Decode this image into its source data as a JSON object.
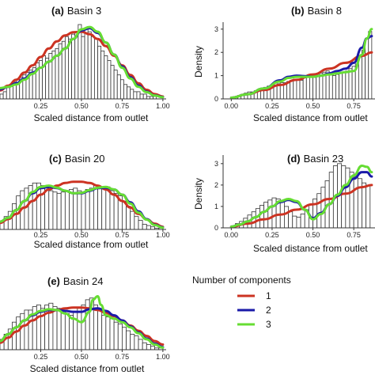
{
  "legend": {
    "title": "Number of components",
    "items": [
      {
        "label": "1",
        "color": "#cc3322"
      },
      {
        "label": "2",
        "color": "#1a1aa8"
      },
      {
        "label": "3",
        "color": "#66dd33"
      }
    ]
  },
  "chart_data": [
    {
      "type": "area",
      "panel": "(a)",
      "title": "Basin 3",
      "xlabel": "Scaled distance from outlet",
      "ylabel": "",
      "xticks": [
        "0.25",
        "0.50",
        "0.75",
        "1.00"
      ],
      "yticks": [],
      "xlim": [
        0.0,
        1.02
      ],
      "ylim": [
        0,
        3.2
      ],
      "histogram": {
        "bin_width": 0.02,
        "start": 0.0,
        "values": [
          0.2,
          0.3,
          0.5,
          0.6,
          0.7,
          0.8,
          0.9,
          1.0,
          1.1,
          1.2,
          1.3,
          1.5,
          1.6,
          1.8,
          1.7,
          1.9,
          2.0,
          2.1,
          2.3,
          2.4,
          2.6,
          2.5,
          2.7,
          2.8,
          3.1,
          2.6,
          2.9,
          2.8,
          2.6,
          2.5,
          2.2,
          2.0,
          1.8,
          1.6,
          1.4,
          1.2,
          1.0,
          0.8,
          0.6,
          0.5,
          0.4,
          0.3,
          0.3,
          0.2,
          0.2,
          0.1,
          0.1,
          0.1,
          0.0,
          0.0
        ]
      },
      "series": [
        {
          "name": "1",
          "x": [
            0,
            0.05,
            0.1,
            0.15,
            0.2,
            0.25,
            0.3,
            0.35,
            0.4,
            0.45,
            0.5,
            0.55,
            0.6,
            0.65,
            0.7,
            0.75,
            0.8,
            0.85,
            0.9,
            0.95,
            1.0
          ],
          "y": [
            0.35,
            0.55,
            0.8,
            1.1,
            1.4,
            1.75,
            2.1,
            2.4,
            2.65,
            2.78,
            2.8,
            2.7,
            2.5,
            2.2,
            1.8,
            1.4,
            1.0,
            0.65,
            0.38,
            0.2,
            0.1
          ]
        },
        {
          "name": "2",
          "x": [
            0,
            0.05,
            0.1,
            0.15,
            0.2,
            0.25,
            0.3,
            0.35,
            0.4,
            0.45,
            0.5,
            0.55,
            0.6,
            0.65,
            0.7,
            0.75,
            0.8,
            0.85,
            0.9,
            0.95,
            1.0
          ],
          "y": [
            0.4,
            0.5,
            0.65,
            0.85,
            1.1,
            1.3,
            1.55,
            1.8,
            2.1,
            2.5,
            2.85,
            2.95,
            2.75,
            2.35,
            1.85,
            1.35,
            0.9,
            0.55,
            0.3,
            0.15,
            0.08
          ]
        },
        {
          "name": "3",
          "x": [
            0,
            0.05,
            0.1,
            0.15,
            0.2,
            0.25,
            0.3,
            0.35,
            0.4,
            0.45,
            0.5,
            0.55,
            0.6,
            0.65,
            0.7,
            0.75,
            0.8,
            0.85,
            0.9,
            0.95,
            1.0
          ],
          "y": [
            0.45,
            0.5,
            0.6,
            0.8,
            1.05,
            1.3,
            1.55,
            1.8,
            2.1,
            2.5,
            2.9,
            3.0,
            2.8,
            2.35,
            1.85,
            1.3,
            0.85,
            0.5,
            0.28,
            0.14,
            0.07
          ]
        }
      ]
    },
    {
      "type": "area",
      "panel": "(b)",
      "title": "Basin 8",
      "xlabel": "Scaled distance from outlet",
      "ylabel": "Density",
      "xticks": [
        "0.00",
        "0.25",
        "0.50",
        "0.75"
      ],
      "yticks": [
        "0",
        "1",
        "2",
        "3"
      ],
      "xlim": [
        -0.05,
        0.88
      ],
      "ylim": [
        0,
        3.3
      ],
      "histogram": {
        "bin_width": 0.02,
        "start": 0.0,
        "values": [
          0.05,
          0.1,
          0.15,
          0.2,
          0.25,
          0.3,
          0.3,
          0.35,
          0.4,
          0.45,
          0.5,
          0.55,
          0.55,
          0.6,
          0.65,
          0.7,
          0.7,
          0.75,
          0.8,
          0.85,
          0.85,
          0.8,
          0.9,
          0.95,
          1.0,
          1.05,
          0.95,
          1.1,
          1.15,
          1.2,
          1.1,
          1.0,
          1.05,
          1.1,
          1.15,
          1.2,
          1.3,
          1.4,
          1.5,
          1.8,
          2.1,
          2.6,
          2.9
        ]
      },
      "series": [
        {
          "name": "1",
          "x": [
            0,
            0.1,
            0.2,
            0.3,
            0.4,
            0.5,
            0.6,
            0.7,
            0.8,
            0.86
          ],
          "y": [
            0.05,
            0.2,
            0.38,
            0.6,
            0.82,
            1.05,
            1.3,
            1.55,
            1.85,
            2.0
          ]
        },
        {
          "name": "2",
          "x": [
            0,
            0.1,
            0.2,
            0.3,
            0.35,
            0.4,
            0.45,
            0.5,
            0.55,
            0.6,
            0.65,
            0.7,
            0.75,
            0.8,
            0.83,
            0.86
          ],
          "y": [
            0.05,
            0.2,
            0.45,
            0.8,
            0.95,
            1.0,
            0.98,
            0.95,
            1.0,
            1.1,
            1.2,
            1.3,
            1.55,
            2.2,
            2.6,
            2.7
          ]
        },
        {
          "name": "3",
          "x": [
            0,
            0.1,
            0.2,
            0.3,
            0.35,
            0.4,
            0.45,
            0.5,
            0.55,
            0.6,
            0.65,
            0.7,
            0.75,
            0.8,
            0.83,
            0.86
          ],
          "y": [
            0.05,
            0.2,
            0.45,
            0.75,
            0.9,
            0.95,
            0.95,
            0.95,
            1.0,
            1.05,
            1.1,
            1.15,
            1.2,
            1.9,
            2.6,
            3.0
          ]
        }
      ]
    },
    {
      "type": "area",
      "panel": "(c)",
      "title": "Basin 20",
      "xlabel": "Scaled distance from outlet",
      "ylabel": "",
      "xticks": [
        "0.25",
        "0.50",
        "0.75",
        "1.00"
      ],
      "yticks": [],
      "xlim": [
        0.0,
        1.02
      ],
      "ylim": [
        0,
        2.3
      ],
      "histogram": {
        "bin_width": 0.025,
        "start": 0.0,
        "values": [
          0.3,
          0.5,
          0.7,
          1.0,
          1.3,
          1.5,
          1.6,
          1.7,
          1.8,
          1.8,
          1.7,
          1.6,
          1.5,
          1.45,
          1.4,
          1.45,
          1.5,
          1.55,
          1.6,
          1.5,
          1.45,
          1.55,
          1.6,
          1.7,
          1.65,
          1.6,
          1.65,
          1.5,
          1.4,
          1.3,
          1.1,
          0.9,
          0.7,
          0.5,
          0.35,
          0.2,
          0.15,
          0.1,
          0.05,
          0.05
        ]
      },
      "series": [
        {
          "name": "1",
          "x": [
            0,
            0.05,
            0.1,
            0.15,
            0.2,
            0.25,
            0.3,
            0.35,
            0.4,
            0.45,
            0.5,
            0.55,
            0.6,
            0.65,
            0.7,
            0.75,
            0.8,
            0.85,
            0.9,
            0.95,
            1.0
          ],
          "y": [
            0.25,
            0.4,
            0.6,
            0.85,
            1.1,
            1.35,
            1.55,
            1.7,
            1.8,
            1.85,
            1.85,
            1.8,
            1.7,
            1.55,
            1.35,
            1.1,
            0.85,
            0.6,
            0.4,
            0.22,
            0.1
          ]
        },
        {
          "name": "2",
          "x": [
            0,
            0.05,
            0.1,
            0.15,
            0.2,
            0.25,
            0.3,
            0.35,
            0.4,
            0.45,
            0.5,
            0.55,
            0.6,
            0.65,
            0.7,
            0.75,
            0.8,
            0.85,
            0.9,
            0.95,
            1.0
          ],
          "y": [
            0.3,
            0.45,
            0.75,
            1.1,
            1.4,
            1.6,
            1.65,
            1.6,
            1.5,
            1.4,
            1.4,
            1.5,
            1.6,
            1.62,
            1.55,
            1.35,
            1.05,
            0.7,
            0.4,
            0.18,
            0.08
          ]
        },
        {
          "name": "3",
          "x": [
            0,
            0.05,
            0.1,
            0.15,
            0.2,
            0.25,
            0.3,
            0.35,
            0.4,
            0.45,
            0.5,
            0.55,
            0.6,
            0.65,
            0.7,
            0.75,
            0.8,
            0.85,
            0.9,
            0.95,
            1.0
          ],
          "y": [
            0.3,
            0.45,
            0.75,
            1.1,
            1.45,
            1.65,
            1.7,
            1.62,
            1.5,
            1.4,
            1.42,
            1.52,
            1.62,
            1.65,
            1.55,
            1.35,
            1.0,
            0.65,
            0.38,
            0.17,
            0.07
          ]
        }
      ]
    },
    {
      "type": "area",
      "panel": "(d)",
      "title": "Basin 23",
      "xlabel": "Scaled distance from outlet",
      "ylabel": "Density",
      "xticks": [
        "0.00",
        "0.25",
        "0.50",
        "0.75"
      ],
      "yticks": [
        "0",
        "1",
        "2",
        "3"
      ],
      "xlim": [
        -0.05,
        0.88
      ],
      "ylim": [
        0,
        3.4
      ],
      "histogram": {
        "bin_width": 0.025,
        "start": 0.0,
        "values": [
          0.1,
          0.2,
          0.3,
          0.45,
          0.6,
          0.75,
          0.9,
          1.05,
          1.2,
          1.3,
          1.4,
          1.35,
          1.2,
          1.0,
          0.75,
          0.55,
          0.5,
          0.65,
          0.85,
          1.1,
          1.35,
          1.6,
          1.9,
          2.2,
          2.6,
          2.9,
          3.0,
          2.9,
          2.8,
          2.6,
          2.4,
          2.3,
          2.1,
          2.0
        ]
      },
      "series": [
        {
          "name": "1",
          "x": [
            0,
            0.1,
            0.2,
            0.3,
            0.4,
            0.5,
            0.6,
            0.7,
            0.8,
            0.86
          ],
          "y": [
            0.05,
            0.2,
            0.4,
            0.62,
            0.85,
            1.1,
            1.35,
            1.6,
            1.9,
            2.0
          ]
        },
        {
          "name": "2",
          "x": [
            0,
            0.05,
            0.1,
            0.15,
            0.2,
            0.25,
            0.3,
            0.35,
            0.4,
            0.45,
            0.5,
            0.55,
            0.6,
            0.65,
            0.7,
            0.75,
            0.8,
            0.83,
            0.86
          ],
          "y": [
            0.05,
            0.15,
            0.3,
            0.5,
            0.75,
            1.0,
            1.2,
            1.3,
            1.2,
            0.85,
            0.45,
            0.7,
            1.1,
            1.5,
            1.9,
            2.3,
            2.6,
            2.6,
            2.4
          ]
        },
        {
          "name": "3",
          "x": [
            0,
            0.05,
            0.1,
            0.15,
            0.2,
            0.25,
            0.3,
            0.35,
            0.4,
            0.45,
            0.5,
            0.55,
            0.6,
            0.65,
            0.7,
            0.75,
            0.8,
            0.83,
            0.86
          ],
          "y": [
            0.05,
            0.15,
            0.3,
            0.5,
            0.75,
            1.0,
            1.25,
            1.35,
            1.25,
            0.85,
            0.4,
            0.65,
            1.1,
            1.55,
            2.0,
            2.45,
            2.9,
            2.85,
            2.6
          ]
        }
      ]
    },
    {
      "type": "area",
      "panel": "(e)",
      "title": "Basin 24",
      "xlabel": "Scaled distance from outlet",
      "ylabel": "",
      "xticks": [
        "0.25",
        "0.50",
        "0.75",
        "1.00"
      ],
      "yticks": [],
      "xlim": [
        0.0,
        1.02
      ],
      "ylim": [
        0,
        3.4
      ],
      "histogram": {
        "bin_width": 0.025,
        "start": 0.0,
        "values": [
          0.6,
          0.9,
          1.2,
          1.6,
          1.9,
          2.1,
          2.3,
          2.3,
          2.5,
          2.6,
          2.4,
          2.6,
          2.7,
          2.5,
          2.4,
          2.3,
          2.1,
          2.0,
          2.2,
          2.4,
          2.6,
          2.9,
          3.0,
          2.6,
          2.3,
          2.0,
          1.9,
          1.8,
          1.6,
          1.5,
          1.3,
          1.1,
          0.9,
          0.8,
          0.6,
          0.4,
          0.3,
          0.2,
          0.1,
          0.1
        ]
      },
      "series": [
        {
          "name": "1",
          "x": [
            0,
            0.05,
            0.1,
            0.15,
            0.2,
            0.25,
            0.3,
            0.35,
            0.4,
            0.45,
            0.5,
            0.55,
            0.6,
            0.65,
            0.7,
            0.75,
            0.8,
            0.85,
            0.9,
            0.95,
            1.0
          ],
          "y": [
            0.4,
            0.7,
            1.05,
            1.4,
            1.7,
            1.95,
            2.15,
            2.3,
            2.4,
            2.45,
            2.45,
            2.4,
            2.3,
            2.15,
            1.95,
            1.7,
            1.4,
            1.1,
            0.8,
            0.5,
            0.3
          ]
        },
        {
          "name": "2",
          "x": [
            0,
            0.05,
            0.1,
            0.15,
            0.2,
            0.25,
            0.3,
            0.35,
            0.4,
            0.45,
            0.5,
            0.55,
            0.6,
            0.65,
            0.7,
            0.75,
            0.8,
            0.85,
            0.9,
            0.95,
            1.0
          ],
          "y": [
            0.5,
            0.9,
            1.3,
            1.7,
            2.0,
            2.2,
            2.3,
            2.3,
            2.25,
            2.2,
            2.2,
            2.35,
            2.4,
            2.25,
            2.0,
            1.7,
            1.35,
            1.0,
            0.65,
            0.35,
            0.15
          ]
        },
        {
          "name": "3",
          "x": [
            0,
            0.05,
            0.1,
            0.15,
            0.2,
            0.25,
            0.3,
            0.35,
            0.4,
            0.45,
            0.5,
            0.55,
            0.57,
            0.6,
            0.62,
            0.65,
            0.7,
            0.75,
            0.8,
            0.85,
            0.9,
            0.95,
            1.0
          ],
          "y": [
            0.5,
            0.9,
            1.3,
            1.7,
            2.05,
            2.25,
            2.35,
            2.3,
            2.1,
            1.8,
            1.6,
            2.2,
            2.9,
            3.1,
            2.6,
            2.0,
            1.8,
            1.6,
            1.3,
            0.95,
            0.6,
            0.3,
            0.12
          ]
        }
      ]
    }
  ]
}
